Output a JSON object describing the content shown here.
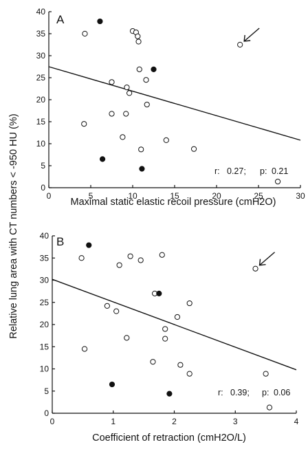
{
  "ylabel": "Relative lung area with CT numbers < -950 HU (%)",
  "chart_data": [
    {
      "type": "scatter",
      "panel_label": "A",
      "xlabel": "Maximal static elastic recoil pressure (cmH2O)",
      "xlim": [
        0,
        30
      ],
      "ylim": [
        0,
        40
      ],
      "xticks": [
        "0",
        "5",
        "10",
        "15",
        "20",
        "25",
        "30"
      ],
      "yticks": [
        "0",
        "5",
        "10",
        "15",
        "20",
        "25",
        "30",
        "35",
        "40"
      ],
      "stats": {
        "r_label": "r:",
        "r": "0.27;",
        "p_label": "p:",
        "p": "0.21"
      },
      "regression": {
        "x": [
          0,
          30
        ],
        "y": [
          27.5,
          10.8
        ]
      },
      "arrow_target": [
        22.8,
        32.5
      ],
      "series": [
        {
          "marker": "open",
          "points": [
            [
              4.3,
              35.0
            ],
            [
              7.5,
              24.0
            ],
            [
              7.5,
              16.8
            ],
            [
              4.2,
              14.5
            ],
            [
              9.3,
              22.8
            ],
            [
              9.6,
              21.5
            ],
            [
              9.2,
              16.8
            ],
            [
              8.8,
              11.5
            ],
            [
              10.0,
              35.6
            ],
            [
              10.4,
              35.3
            ],
            [
              10.6,
              34.4
            ],
            [
              10.7,
              33.2
            ],
            [
              10.8,
              26.9
            ],
            [
              11.6,
              24.5
            ],
            [
              11.7,
              18.9
            ],
            [
              11.0,
              8.7
            ],
            [
              14.0,
              10.8
            ],
            [
              17.3,
              8.8
            ],
            [
              22.8,
              32.5
            ],
            [
              27.3,
              1.4
            ]
          ]
        },
        {
          "marker": "filled",
          "points": [
            [
              6.1,
              37.8
            ],
            [
              12.5,
              26.9
            ],
            [
              6.4,
              6.5
            ],
            [
              11.1,
              4.3
            ]
          ]
        }
      ]
    },
    {
      "type": "scatter",
      "panel_label": "B",
      "xlabel": "Coefficient of retraction (cmH2O/L)",
      "xlim": [
        0,
        4
      ],
      "ylim": [
        0,
        40
      ],
      "xticks": [
        "0",
        "1",
        "2",
        "3",
        "4"
      ],
      "yticks": [
        "0",
        "5",
        "10",
        "15",
        "20",
        "25",
        "30",
        "35",
        "40"
      ],
      "stats": {
        "r_label": "r:",
        "r": "0.39;",
        "p_label": "p:",
        "p": "0.06"
      },
      "regression": {
        "x": [
          0,
          4
        ],
        "y": [
          30.2,
          9.8
        ]
      },
      "arrow_target": [
        3.33,
        32.6
      ],
      "series": [
        {
          "marker": "open",
          "points": [
            [
              0.48,
              35.0
            ],
            [
              0.53,
              14.5
            ],
            [
              0.9,
              24.2
            ],
            [
              1.05,
              23.0
            ],
            [
              1.1,
              33.4
            ],
            [
              1.22,
              17.0
            ],
            [
              1.28,
              35.4
            ],
            [
              1.45,
              34.5
            ],
            [
              1.65,
              11.6
            ],
            [
              1.68,
              27.0
            ],
            [
              1.8,
              35.7
            ],
            [
              1.85,
              19.0
            ],
            [
              1.85,
              16.8
            ],
            [
              2.05,
              21.7
            ],
            [
              2.1,
              10.9
            ],
            [
              2.25,
              24.8
            ],
            [
              2.25,
              8.9
            ],
            [
              3.33,
              32.6
            ],
            [
              3.5,
              8.9
            ],
            [
              3.56,
              1.3
            ]
          ]
        },
        {
          "marker": "filled",
          "points": [
            [
              0.6,
              37.9
            ],
            [
              1.75,
              27.0
            ],
            [
              0.98,
              6.5
            ],
            [
              1.92,
              4.4
            ]
          ]
        }
      ]
    }
  ]
}
